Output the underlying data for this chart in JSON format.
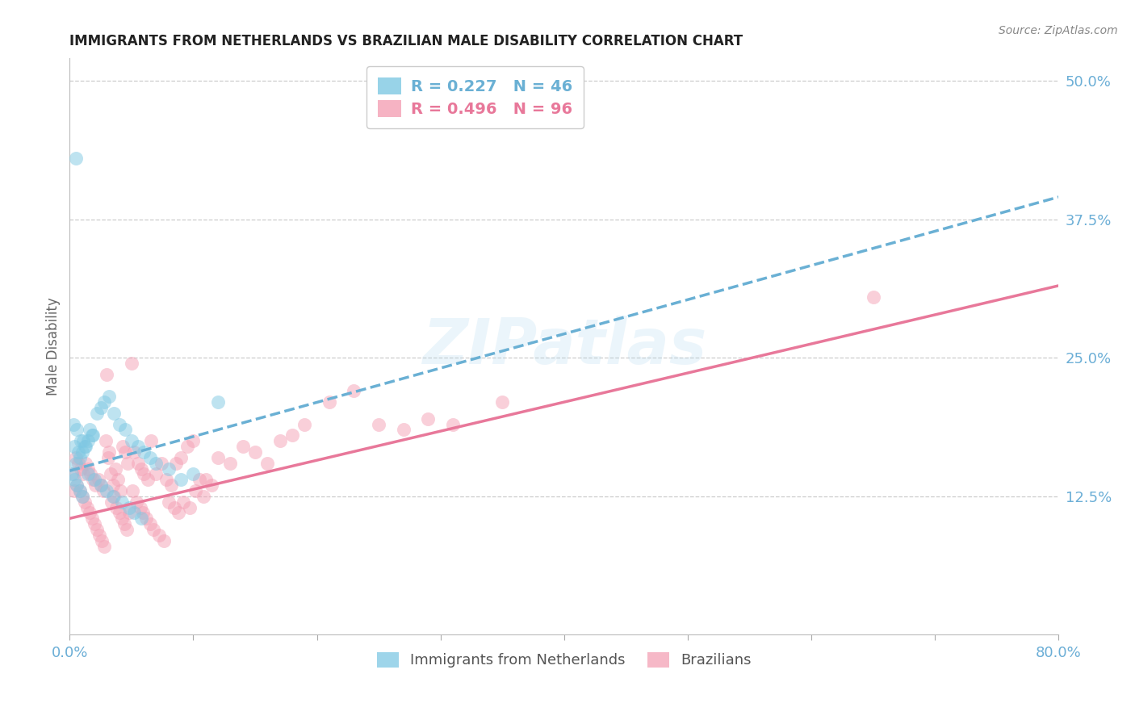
{
  "title": "IMMIGRANTS FROM NETHERLANDS VS BRAZILIAN MALE DISABILITY CORRELATION CHART",
  "source": "Source: ZipAtlas.com",
  "ylabel": "Male Disability",
  "legend_label1": "Immigrants from Netherlands",
  "legend_label2": "Brazilians",
  "r1": 0.227,
  "n1": 46,
  "r2": 0.496,
  "n2": 96,
  "color1": "#7ec8e3",
  "color2": "#f4a0b5",
  "color1_line": "#6ab0d4",
  "color2_line": "#e8789a",
  "axis_color": "#6baed6",
  "watermark": "ZIPatlas",
  "xlim": [
    0.0,
    0.8
  ],
  "ylim": [
    0.0,
    0.52
  ],
  "scatter1_x": [
    0.005,
    0.008,
    0.01,
    0.012,
    0.015,
    0.018,
    0.003,
    0.006,
    0.009,
    0.004,
    0.007,
    0.011,
    0.013,
    0.016,
    0.019,
    0.022,
    0.025,
    0.028,
    0.032,
    0.036,
    0.04,
    0.045,
    0.05,
    0.055,
    0.06,
    0.065,
    0.07,
    0.08,
    0.09,
    0.1,
    0.12,
    0.015,
    0.02,
    0.025,
    0.03,
    0.035,
    0.042,
    0.048,
    0.052,
    0.058,
    0.002,
    0.004,
    0.006,
    0.008,
    0.01,
    0.005
  ],
  "scatter1_y": [
    0.155,
    0.16,
    0.165,
    0.17,
    0.175,
    0.18,
    0.19,
    0.185,
    0.175,
    0.17,
    0.165,
    0.175,
    0.17,
    0.185,
    0.18,
    0.2,
    0.205,
    0.21,
    0.215,
    0.2,
    0.19,
    0.185,
    0.175,
    0.17,
    0.165,
    0.16,
    0.155,
    0.15,
    0.14,
    0.145,
    0.21,
    0.145,
    0.14,
    0.135,
    0.13,
    0.125,
    0.12,
    0.115,
    0.11,
    0.105,
    0.145,
    0.14,
    0.135,
    0.13,
    0.125,
    0.43
  ],
  "scatter2_x": [
    0.003,
    0.005,
    0.007,
    0.009,
    0.011,
    0.013,
    0.015,
    0.017,
    0.019,
    0.021,
    0.023,
    0.025,
    0.027,
    0.029,
    0.031,
    0.033,
    0.035,
    0.037,
    0.039,
    0.041,
    0.043,
    0.045,
    0.047,
    0.05,
    0.052,
    0.055,
    0.058,
    0.06,
    0.063,
    0.066,
    0.07,
    0.074,
    0.078,
    0.082,
    0.086,
    0.09,
    0.095,
    0.1,
    0.105,
    0.11,
    0.12,
    0.13,
    0.14,
    0.15,
    0.16,
    0.17,
    0.18,
    0.19,
    0.21,
    0.23,
    0.25,
    0.27,
    0.29,
    0.31,
    0.35,
    0.004,
    0.006,
    0.008,
    0.01,
    0.012,
    0.014,
    0.016,
    0.018,
    0.02,
    0.022,
    0.024,
    0.026,
    0.028,
    0.03,
    0.032,
    0.034,
    0.036,
    0.038,
    0.04,
    0.042,
    0.044,
    0.046,
    0.048,
    0.051,
    0.054,
    0.057,
    0.059,
    0.062,
    0.065,
    0.068,
    0.072,
    0.076,
    0.08,
    0.085,
    0.088,
    0.092,
    0.097,
    0.102,
    0.108,
    0.115,
    0.65
  ],
  "scatter2_y": [
    0.145,
    0.16,
    0.155,
    0.15,
    0.145,
    0.155,
    0.15,
    0.145,
    0.14,
    0.135,
    0.14,
    0.135,
    0.13,
    0.175,
    0.16,
    0.145,
    0.135,
    0.15,
    0.14,
    0.13,
    0.17,
    0.165,
    0.155,
    0.245,
    0.165,
    0.155,
    0.15,
    0.145,
    0.14,
    0.175,
    0.145,
    0.155,
    0.14,
    0.135,
    0.155,
    0.16,
    0.17,
    0.175,
    0.14,
    0.14,
    0.16,
    0.155,
    0.17,
    0.165,
    0.155,
    0.175,
    0.18,
    0.19,
    0.21,
    0.22,
    0.19,
    0.185,
    0.195,
    0.19,
    0.21,
    0.13,
    0.135,
    0.13,
    0.125,
    0.12,
    0.115,
    0.11,
    0.105,
    0.1,
    0.095,
    0.09,
    0.085,
    0.08,
    0.235,
    0.165,
    0.12,
    0.125,
    0.115,
    0.11,
    0.105,
    0.1,
    0.095,
    0.11,
    0.13,
    0.12,
    0.115,
    0.11,
    0.105,
    0.1,
    0.095,
    0.09,
    0.085,
    0.12,
    0.115,
    0.11,
    0.12,
    0.115,
    0.13,
    0.125,
    0.135,
    0.305
  ],
  "line1_x0": 0.0,
  "line1_y0": 0.148,
  "line1_x1": 0.8,
  "line1_y1": 0.395,
  "line2_x0": 0.0,
  "line2_y0": 0.105,
  "line2_x1": 0.8,
  "line2_y1": 0.315
}
